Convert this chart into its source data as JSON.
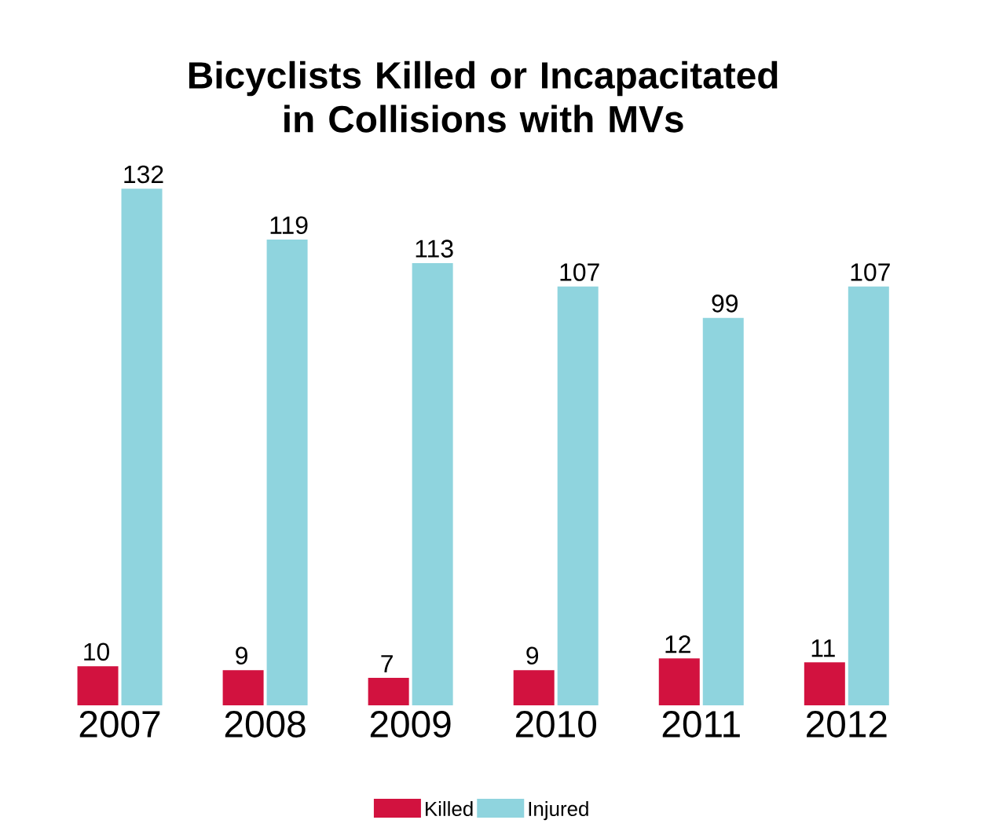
{
  "chart_data": {
    "type": "bar",
    "title": "Bicyclists Killed or Incapacitated in Collisions with MVs",
    "categories": [
      "2007",
      "2008",
      "2009",
      "2010",
      "2011",
      "2012"
    ],
    "series": [
      {
        "name": "Killed",
        "color": "#d2123f",
        "values": [
          10,
          9,
          7,
          9,
          12,
          11
        ]
      },
      {
        "name": "Injured",
        "color": "#8fd4de",
        "values": [
          132,
          119,
          113,
          107,
          99,
          107
        ]
      }
    ],
    "data_labels": true,
    "legend": "bottom"
  }
}
